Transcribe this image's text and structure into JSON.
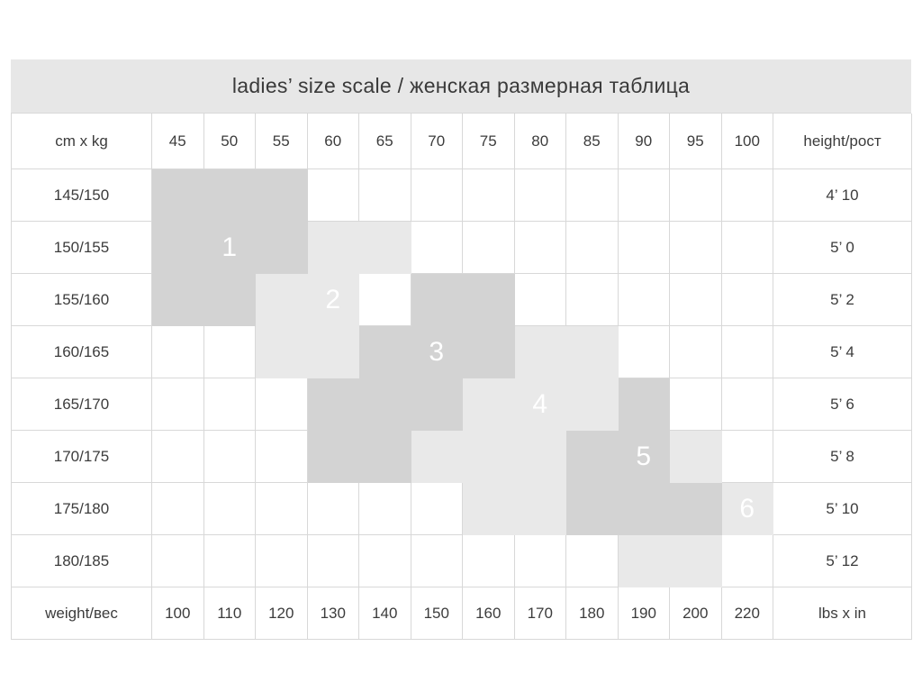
{
  "chart_data": {
    "type": "table",
    "title": "ladies’ size scale / женская размерная таблица",
    "corner_labels": {
      "top_left": "cm x kg",
      "top_right": "height/рост",
      "bottom_left": "weight/вес",
      "bottom_right": "lbs x in"
    },
    "weight_kg": [
      "45",
      "50",
      "55",
      "60",
      "65",
      "70",
      "75",
      "80",
      "85",
      "90",
      "95",
      "100"
    ],
    "weight_lbs": [
      "100",
      "110",
      "120",
      "130",
      "140",
      "150",
      "160",
      "170",
      "180",
      "190",
      "200",
      "220"
    ],
    "sizes": [
      "1",
      "2",
      "3",
      "4",
      "5",
      "6"
    ],
    "cells_encoding": "per row, 12 chars for kg columns 45..100: '.'=white, 'd'=dark gray, 'l'=light gray, digit 1-6 = size number printed in white (odd sizes on dark, even sizes on light)",
    "rows": [
      {
        "height_cm": "145/150",
        "height_ft": "4’ 10",
        "cells": "ddd........."
      },
      {
        "height_cm": "150/155",
        "height_ft": "5’ 0",
        "cells": "d1dll......."
      },
      {
        "height_cm": "155/160",
        "height_ft": "5’ 2",
        "cells": "ddl2.dd....."
      },
      {
        "height_cm": "160/165",
        "height_ft": "5’ 4",
        "cells": "..lld3dll..."
      },
      {
        "height_cm": "165/170",
        "height_ft": "5’ 6",
        "cells": "...dddl4ld.."
      },
      {
        "height_cm": "170/175",
        "height_ft": "5’ 8",
        "cells": "...ddllld5l."
      },
      {
        "height_cm": "175/180",
        "height_ft": "5’ 10",
        "cells": "......llddd6"
      },
      {
        "height_cm": "180/185",
        "height_ft": "5’ 12",
        "cells": ".........ll."
      }
    ]
  },
  "colors": {
    "title_background": "#e7e7e7",
    "dark_shade": "#d3d3d3",
    "light_shade": "#e9e9e9",
    "grid_line": "#d8d8d8",
    "text": "#3c3c3c",
    "size_number": "#ffffff"
  }
}
